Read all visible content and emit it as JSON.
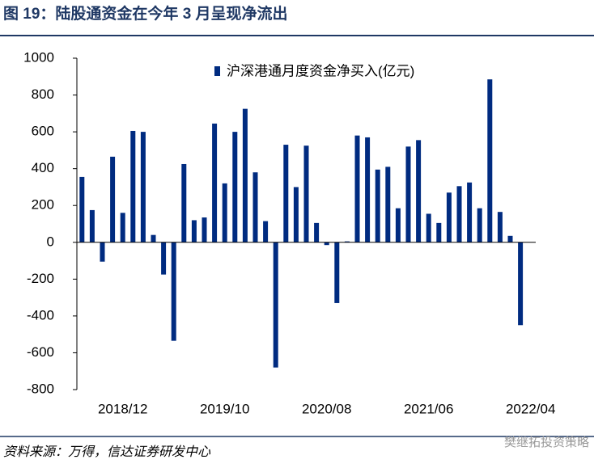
{
  "title": "图 19：陆股通资金在今年 3 月呈现净流出",
  "source": "资料来源：万得，信达证券研发中心",
  "watermark": "樊继拓投资策略",
  "chart_data": {
    "type": "bar",
    "categories": [
      null,
      null,
      null,
      null,
      "2018/12",
      null,
      null,
      null,
      null,
      null,
      null,
      null,
      null,
      null,
      "2019/10",
      null,
      null,
      null,
      null,
      null,
      null,
      null,
      null,
      null,
      "2020/08",
      null,
      null,
      null,
      null,
      null,
      null,
      null,
      null,
      null,
      "2021/06",
      null,
      null,
      null,
      null,
      null,
      null,
      null,
      null,
      null,
      "2022/04"
    ],
    "series": [
      {
        "name": "沪深港通月度资金净买入(亿元)",
        "color": "#002b80",
        "values": [
          355,
          175,
          -105,
          465,
          160,
          605,
          600,
          40,
          -175,
          -535,
          425,
          120,
          135,
          645,
          320,
          600,
          725,
          380,
          115,
          -680,
          530,
          300,
          525,
          105,
          -15,
          -330,
          5,
          580,
          570,
          395,
          410,
          185,
          520,
          555,
          155,
          105,
          270,
          305,
          325,
          185,
          885,
          165,
          35,
          -450,
          null
        ]
      }
    ],
    "ylim": [
      -800,
      1000
    ],
    "yticks": [
      -800,
      -600,
      -400,
      -200,
      0,
      200,
      400,
      600,
      800,
      1000
    ],
    "legend": "top"
  }
}
